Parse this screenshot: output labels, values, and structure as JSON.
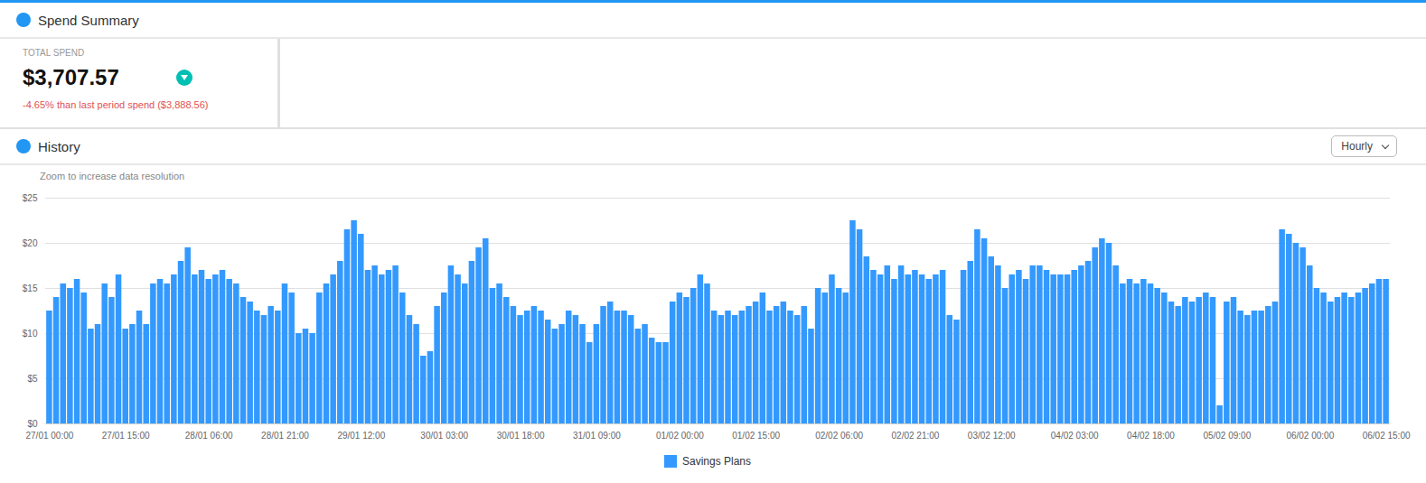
{
  "chart_data": {
    "type": "bar",
    "title": "History",
    "subtitle": "Zoom to increase data resolution",
    "annotations": [
      "Spend Summary",
      "TOTAL SPEND",
      "$3,707.57",
      "-4.65% than last period spend ($3,888.56)",
      "Hourly"
    ],
    "categories": [
      "27/01 00:00",
      null,
      null,
      null,
      null,
      null,
      null,
      null,
      null,
      null,
      null,
      "27/01 15:00",
      null,
      null,
      null,
      null,
      null,
      null,
      null,
      null,
      null,
      null,
      null,
      "28/01 06:00",
      null,
      null,
      null,
      null,
      null,
      null,
      null,
      null,
      null,
      null,
      "28/01 21:00",
      null,
      null,
      null,
      null,
      null,
      null,
      null,
      null,
      null,
      null,
      "29/01 12:00",
      null,
      null,
      null,
      null,
      null,
      null,
      null,
      null,
      null,
      null,
      null,
      "30/01 03:00",
      null,
      null,
      null,
      null,
      null,
      null,
      null,
      null,
      null,
      null,
      "30/01 18:00",
      null,
      null,
      null,
      null,
      null,
      null,
      null,
      null,
      null,
      null,
      "31/01 09:00",
      null,
      null,
      null,
      null,
      null,
      null,
      null,
      null,
      null,
      null,
      null,
      "01/02 00:00",
      null,
      null,
      null,
      null,
      null,
      null,
      null,
      null,
      null,
      null,
      "01/02 15:00",
      null,
      null,
      null,
      null,
      null,
      null,
      null,
      null,
      null,
      null,
      null,
      "02/02 06:00",
      null,
      null,
      null,
      null,
      null,
      null,
      null,
      null,
      null,
      null,
      "02/02 21:00",
      null,
      null,
      null,
      null,
      null,
      null,
      null,
      null,
      null,
      null,
      "03/02 12:00",
      null,
      null,
      null,
      null,
      null,
      null,
      null,
      null,
      null,
      null,
      null,
      "04/02 03:00",
      null,
      null,
      null,
      null,
      null,
      null,
      null,
      null,
      null,
      null,
      "04/02 18:00",
      null,
      null,
      null,
      null,
      null,
      null,
      null,
      null,
      null,
      null,
      "05/02 09:00",
      null,
      null,
      null,
      null,
      null,
      null,
      null,
      null,
      null,
      null,
      null,
      "06/02 00:00",
      null,
      null,
      null,
      null,
      null,
      null,
      null,
      null,
      null,
      null,
      "06/02 15:00"
    ],
    "series": [
      {
        "name": "Savings Plans",
        "color": "#3399FF",
        "values": [
          12.5,
          14.0,
          15.5,
          15.0,
          16.0,
          14.5,
          10.5,
          11.0,
          15.5,
          14.0,
          16.5,
          10.5,
          11.0,
          12.5,
          11.0,
          15.5,
          16.0,
          15.5,
          16.5,
          18.0,
          19.5,
          16.5,
          17.0,
          16.0,
          16.5,
          17.0,
          16.0,
          15.5,
          14.0,
          13.5,
          12.5,
          12.0,
          13.0,
          12.5,
          15.5,
          14.5,
          10.0,
          10.5,
          10.0,
          14.5,
          15.5,
          16.5,
          18.0,
          21.5,
          22.5,
          21.0,
          17.0,
          17.5,
          16.5,
          17.0,
          17.5,
          14.5,
          12.0,
          11.0,
          7.5,
          8.0,
          13.0,
          14.5,
          17.5,
          16.5,
          15.5,
          18.0,
          19.5,
          20.5,
          15.0,
          15.5,
          14.0,
          13.0,
          12.0,
          12.5,
          13.0,
          12.5,
          11.5,
          10.5,
          11.0,
          12.5,
          12.0,
          11.0,
          9.0,
          11.0,
          13.0,
          13.5,
          12.5,
          12.5,
          12.0,
          10.5,
          11.0,
          9.5,
          9.0,
          9.0,
          13.5,
          14.5,
          14.0,
          15.0,
          16.5,
          15.5,
          12.5,
          12.0,
          12.5,
          12.0,
          12.5,
          13.0,
          13.5,
          14.5,
          12.5,
          13.0,
          13.5,
          12.5,
          12.0,
          13.0,
          10.5,
          15.0,
          14.5,
          16.5,
          15.0,
          14.5,
          22.5,
          21.5,
          18.5,
          17.0,
          16.5,
          17.5,
          16.0,
          17.5,
          16.5,
          17.0,
          16.5,
          16.0,
          16.5,
          17.0,
          12.0,
          11.5,
          17.0,
          18.0,
          21.5,
          20.5,
          18.5,
          17.5,
          15.0,
          16.5,
          17.0,
          16.0,
          17.5,
          17.5,
          17.0,
          16.5,
          16.5,
          16.5,
          17.0,
          17.5,
          18.0,
          19.5,
          20.5,
          20.0,
          17.5,
          15.5,
          16.0,
          15.5,
          16.0,
          15.5,
          15.0,
          14.5,
          13.5,
          13.0,
          14.0,
          13.5,
          14.0,
          14.5,
          14.0,
          2.0,
          13.5,
          14.0,
          12.5,
          12.0,
          12.5,
          12.5,
          13.0,
          13.5,
          21.5,
          21.0,
          20.0,
          19.5,
          17.5,
          15.0,
          14.5,
          13.5,
          14.0,
          14.5,
          14.0,
          14.5,
          15.0,
          15.5,
          16.0,
          16.0
        ]
      }
    ],
    "ylim": [
      0,
      25
    ],
    "yticks": [
      {
        "value": 0,
        "label": "$0"
      },
      {
        "value": 5,
        "label": "$5"
      },
      {
        "value": 10,
        "label": "$10"
      },
      {
        "value": 15,
        "label": "$15"
      },
      {
        "value": 20,
        "label": "$20"
      },
      {
        "value": 25,
        "label": "$25"
      }
    ],
    "grid": true,
    "legend": "bottom"
  }
}
